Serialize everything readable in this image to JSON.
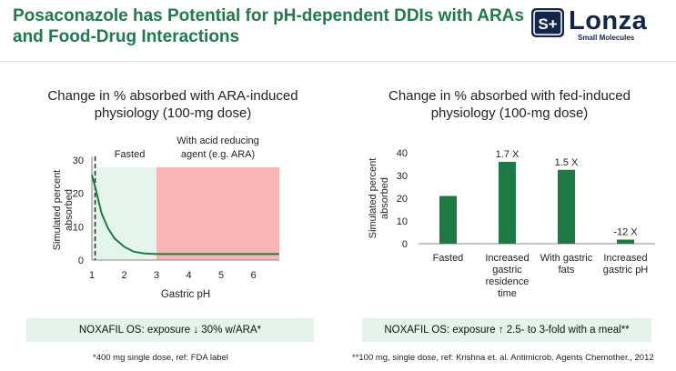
{
  "header": {
    "title_line1": "Posaconazole has Potential for pH-dependent DDIs with ARAs",
    "title_line2": "and Food-Drug Interactions",
    "logo_mark": "S+",
    "logo_word": "Lonza",
    "logo_sub": "Small Molecules"
  },
  "colors": {
    "title": "#1f7a4c",
    "bar": "#1e7a45",
    "fasted_zone": "#e6f5ec",
    "ara_zone": "#f8b5b5",
    "note_box": "#e4f4ea",
    "logo_navy": "#12264a"
  },
  "left_chart": {
    "title_line1": "Change in % absorbed with ARA-induced",
    "title_line2": "physiology (100-mg dose)",
    "note": "NOXAFIL OS: exposure ↓ 30% w/ARA*",
    "footnote": "*400 mg single dose, ref: FDA label"
  },
  "right_chart": {
    "title_line1": "Change in % absorbed with fed-induced",
    "title_line2": "physiology (100-mg dose)",
    "note": "NOXAFIL OS: exposure ↑ 2.5- to 3-fold with a meal**",
    "footnote": "**100 mg, single dose, ref: Krishna et. al. Antimicrob. Agents Chemother., 2012"
  },
  "chart_data": [
    {
      "type": "line",
      "title": "Change in % absorbed with ARA-induced physiology (100-mg dose)",
      "xlabel": "Gastric pH",
      "ylabel": "Simulated percent absorbed",
      "xlim": [
        1,
        6.8
      ],
      "ylim": [
        0,
        30
      ],
      "xticks": [
        1,
        2,
        3,
        4,
        5,
        6
      ],
      "yticks": [
        0,
        10,
        20,
        30
      ],
      "series": [
        {
          "name": "Simulated percent absorbed",
          "x": [
            1.0,
            1.1,
            1.2,
            1.3,
            1.5,
            1.7,
            2.0,
            2.3,
            2.6,
            3.0,
            4.0,
            5.0,
            6.0,
            6.8
          ],
          "y": [
            25.5,
            22,
            18,
            14,
            9.5,
            6.5,
            4.0,
            2.5,
            2.0,
            1.8,
            1.8,
            1.8,
            1.8,
            1.8
          ]
        }
      ],
      "regions": [
        {
          "label": "Fasted",
          "x_from": 1.0,
          "x_to": 3.0
        },
        {
          "label_line1": "With acid reducing",
          "label_line2": "agent (e.g. ARA)",
          "x_from": 3.0,
          "x_to": 6.8
        }
      ],
      "reference_line": {
        "x": 1.1,
        "style": "dashed"
      }
    },
    {
      "type": "bar",
      "title": "Change in % absorbed with fed-induced physiology (100-mg dose)",
      "xlabel": "",
      "ylabel": "Simulated percent absorbed",
      "ylim": [
        0,
        40
      ],
      "yticks": [
        0,
        10,
        20,
        30,
        40
      ],
      "categories": [
        [
          "Fasted"
        ],
        [
          "Increased",
          "gastric",
          "residence",
          "time"
        ],
        [
          "With gastric",
          "fats"
        ],
        [
          "Increased",
          "gastric pH"
        ]
      ],
      "values": [
        21,
        36,
        32.5,
        1.8
      ],
      "data_labels": [
        "",
        "1.7 X",
        "1.5 X",
        "-12 X"
      ]
    }
  ]
}
